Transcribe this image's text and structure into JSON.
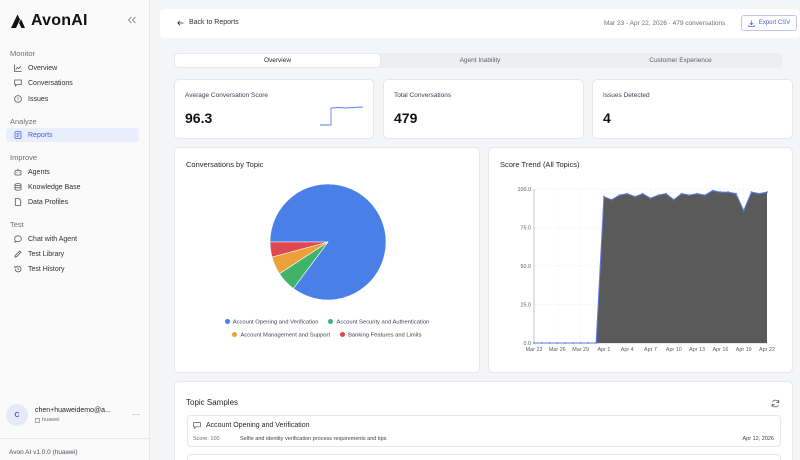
{
  "app": {
    "name": "AvonAI",
    "version": "Avon AI v1.0.0 (huawei)"
  },
  "sidebar": {
    "sections": [
      {
        "title": "Monitor",
        "items": [
          {
            "label": "Overview",
            "icon": "chart-line-icon"
          },
          {
            "label": "Conversations",
            "icon": "message-icon"
          },
          {
            "label": "Issues",
            "icon": "alert-circle-icon"
          }
        ]
      },
      {
        "title": "Analyze",
        "items": [
          {
            "label": "Reports",
            "icon": "report-icon",
            "active": true
          }
        ]
      },
      {
        "title": "Improve",
        "items": [
          {
            "label": "Agents",
            "icon": "bot-icon"
          },
          {
            "label": "Knowledge Base",
            "icon": "database-icon"
          },
          {
            "label": "Data Profiles",
            "icon": "document-icon"
          }
        ]
      },
      {
        "title": "Test",
        "items": [
          {
            "label": "Chat with Agent",
            "icon": "chat-bubble-icon"
          },
          {
            "label": "Test Library",
            "icon": "pencil-icon"
          },
          {
            "label": "Test History",
            "icon": "history-icon"
          }
        ]
      }
    ],
    "user": {
      "initial": "C",
      "email": "chen+huaweidemo@a...",
      "org": "huawei"
    }
  },
  "header": {
    "back_label": "Back to Reports",
    "range": "Mar 23 - Apr 22, 2026 · 479 conversations",
    "export_label": "Export CSV"
  },
  "tabs": [
    {
      "label": "Overview",
      "active": true
    },
    {
      "label": "Agent Inability"
    },
    {
      "label": "Customer Experience"
    }
  ],
  "stats": {
    "avg_score": {
      "label": "Average Conversation Score",
      "value": "96.3"
    },
    "total": {
      "label": "Total Conversations",
      "value": "479"
    },
    "issues": {
      "label": "Issues Detected",
      "value": "4"
    }
  },
  "colors": {
    "accent": "#3e63dd",
    "pie": [
      "#4a7fe8",
      "#3fb36a",
      "#eda03a",
      "#e04850"
    ],
    "trend_line": "#5b7fe6",
    "trend_fill": "#5a5a5a"
  },
  "chart_data": [
    {
      "type": "pie",
      "title": "Conversations by Topic",
      "labels": [
        "Account Opening and Verification",
        "Account Security and Authentication",
        "Account Management and Support",
        "Banking Features and Limits"
      ],
      "values": [
        408,
        27,
        24,
        20
      ],
      "legend_position": "bottom"
    },
    {
      "type": "area",
      "title": "Score Trend (All Topics)",
      "x": [
        "Mar 23",
        "Mar 24",
        "Mar 25",
        "Mar 26",
        "Mar 27",
        "Mar 28",
        "Mar 29",
        "Mar 30",
        "Mar 31",
        "Apr 1",
        "Apr 2",
        "Apr 3",
        "Apr 4",
        "Apr 5",
        "Apr 6",
        "Apr 7",
        "Apr 8",
        "Apr 9",
        "Apr 10",
        "Apr 11",
        "Apr 12",
        "Apr 13",
        "Apr 14",
        "Apr 15",
        "Apr 16",
        "Apr 17",
        "Apr 18",
        "Apr 19",
        "Apr 20",
        "Apr 21",
        "Apr 22"
      ],
      "x_tick_labels": [
        "Mar 23",
        "Mar 26",
        "Mar 29",
        "Apr 1",
        "Apr 4",
        "Apr 7",
        "Apr 10",
        "Apr 13",
        "Apr 16",
        "Apr 19",
        "Apr 22"
      ],
      "series": [
        {
          "values": [
            0,
            0,
            0,
            0,
            0,
            0,
            0,
            0,
            0,
            95,
            93,
            96,
            97,
            95,
            97,
            94,
            96,
            97,
            93,
            97,
            96,
            97,
            96,
            99,
            98,
            98,
            97,
            86,
            98,
            97,
            98
          ]
        }
      ],
      "ylim": [
        0,
        100
      ],
      "yticks": [
        "0.0",
        "25.0",
        "50.0",
        "75.0",
        "100.0"
      ],
      "grid": true
    }
  ],
  "samples": {
    "title": "Topic Samples",
    "items": [
      {
        "topic": "Account Opening and Verification",
        "score": "Score: 100",
        "description": "Selfie and identity verification process requirements and tips",
        "date": "Apr 12, 2026"
      }
    ]
  }
}
